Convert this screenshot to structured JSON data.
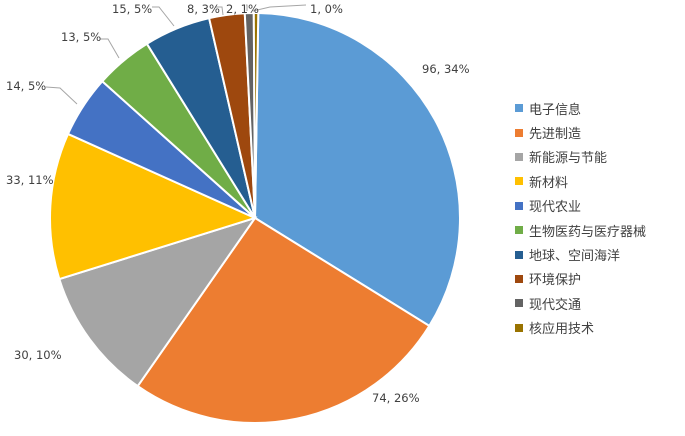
{
  "chart_data": {
    "type": "pie",
    "title": "",
    "legend_position": "right",
    "label_format": "value, percent",
    "slices": [
      {
        "name": "电子信息",
        "value": 96,
        "percent": "34%",
        "label": "96, 34%",
        "color": "#5b9bd5"
      },
      {
        "name": "先进制造",
        "value": 74,
        "percent": "26%",
        "label": "74, 26%",
        "color": "#ed7d31"
      },
      {
        "name": "新能源与节能",
        "value": 30,
        "percent": "10%",
        "label": "30, 10%",
        "color": "#a5a5a5"
      },
      {
        "name": "新材料",
        "value": 33,
        "percent": "11%",
        "label": "33, 11%",
        "color": "#ffc000"
      },
      {
        "name": "现代农业",
        "value": 14,
        "percent": "5%",
        "label": "14, 5%",
        "color": "#4472c4"
      },
      {
        "name": "生物医药与医疗器械",
        "value": 13,
        "percent": "5%",
        "label": "13, 5%",
        "color": "#70ad47"
      },
      {
        "name": "地球、空间海洋",
        "value": 15,
        "percent": "5%",
        "label": "15, 5%",
        "color": "#255e91"
      },
      {
        "name": "环境保护",
        "value": 8,
        "percent": "3%",
        "label": "8, 3%",
        "color": "#9e480e"
      },
      {
        "name": "现代交通",
        "value": 2,
        "percent": "1%",
        "label": "2, 1%",
        "color": "#636363"
      },
      {
        "name": "核应用技术",
        "value": 1,
        "percent": "0%",
        "label": "1, 0%",
        "color": "#997300"
      }
    ]
  }
}
